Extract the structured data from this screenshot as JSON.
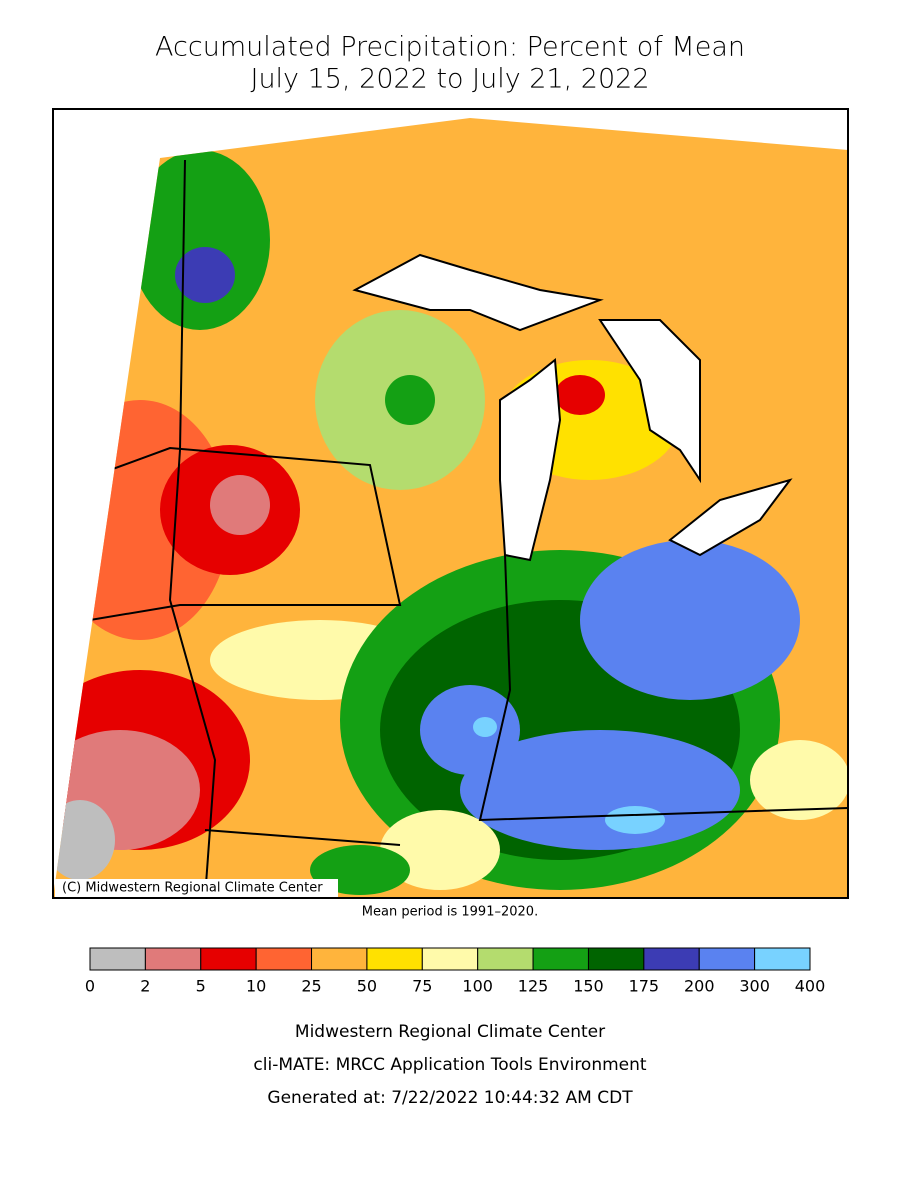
{
  "title": [
    "Accumulated Precipitation: Percent of Mean",
    "July 15, 2022 to July 21, 2022"
  ],
  "copyright": "(C) Midwestern Regional Climate Center",
  "note": "Mean period is 1991–2020.",
  "legend": {
    "ticks": [
      0,
      2,
      5,
      10,
      25,
      50,
      75,
      100,
      125,
      150,
      175,
      200,
      300,
      400
    ],
    "colors": [
      "#bebebe",
      "#e07a7a",
      "#e60000",
      "#ff6432",
      "#ffb43c",
      "#ffe100",
      "#fffaaa",
      "#b4dc6e",
      "#14a014",
      "#006400",
      "#3c3cb4",
      "#5a82f0",
      "#78d2ff"
    ]
  },
  "footer": [
    "Midwestern Regional Climate Center",
    "cli-MATE: MRCC Application Tools Environment",
    "Generated at: 7/22/2022 10:44:32 AM CDT"
  ]
}
